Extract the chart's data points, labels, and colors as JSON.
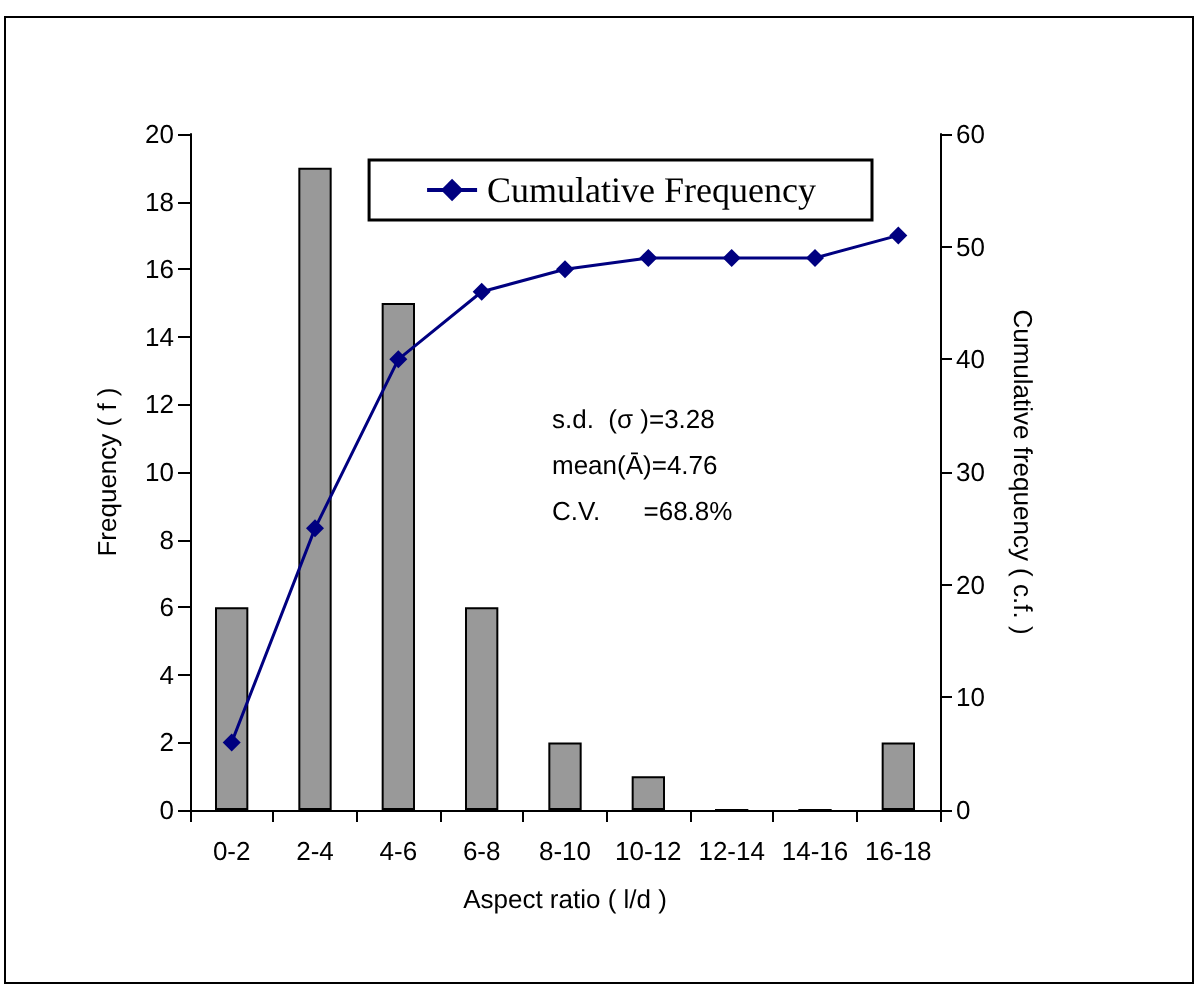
{
  "chart_data": {
    "type": "bar",
    "xlabel": "Aspect ratio ( l/d )",
    "ylabel": "Frequency ( f )",
    "y2label": "Cumulative frequency ( c.f. )",
    "categories": [
      "0-2",
      "2-4",
      "4-6",
      "6-8",
      "8-10",
      "10-12",
      "12-14",
      "14-16",
      "16-18"
    ],
    "series": [
      {
        "color": "#999999",
        "values": [
          6,
          19,
          15,
          6,
          2,
          1,
          0,
          0,
          2
        ]
      },
      {
        "type": "line",
        "name": "Cumulative Frequency",
        "color": "#000080",
        "axis": "y2",
        "marker": "diamond",
        "values": [
          6,
          25,
          40,
          46,
          48,
          49,
          49,
          49,
          51
        ]
      }
    ],
    "ylim": [
      0,
      20
    ],
    "yticks": [
      0,
      2,
      4,
      6,
      8,
      10,
      12,
      14,
      16,
      18,
      20
    ],
    "y2lim": [
      0,
      60
    ],
    "y2ticks": [
      0,
      10,
      20,
      30,
      40,
      50,
      60
    ],
    "annotations": [
      "s.d.  (σ )=3.28",
      "mean(Ā)=4.76",
      "C.V.      =68.8%"
    ],
    "legend": "top right",
    "grid": false
  }
}
